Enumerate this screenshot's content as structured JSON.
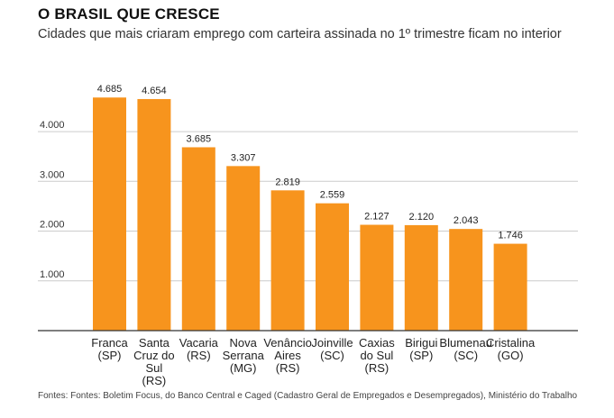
{
  "title": "O BRASIL QUE CRESCE",
  "subtitle": "Cidades que mais criaram emprego com carteira assinada no 1º trimestre ficam no interior",
  "source": "Fontes: Fontes: Boletim Focus, do Banco Central e Caged (Cadastro Geral de Empregados e Desempregados), Ministério do Trabalho",
  "colors": {
    "bar": "#f7941d",
    "grid": "#cccccc",
    "axis": "#333333"
  },
  "chart_data": {
    "type": "bar",
    "categories": [
      [
        "Franca",
        "(SP)"
      ],
      [
        "Santa",
        "Cruz do",
        "Sul",
        "(RS)"
      ],
      [
        "Vacaria",
        "(RS)"
      ],
      [
        "Nova",
        "Serrana",
        "(MG)"
      ],
      [
        "Venâncio",
        "Aires",
        "(RS)"
      ],
      [
        "Joinville",
        "(SC)"
      ],
      [
        "Caxias",
        "do Sul",
        "(RS)"
      ],
      [
        "Birigui",
        "(SP)"
      ],
      [
        "Blumenau",
        "(SC)"
      ],
      [
        "Cristalina",
        "(GO)"
      ]
    ],
    "values": [
      4685,
      4654,
      3685,
      3307,
      2819,
      2559,
      2127,
      2120,
      2043,
      1746
    ],
    "value_labels": [
      "4.685",
      "4.654",
      "3.685",
      "3.307",
      "2.819",
      "2.559",
      "2.127",
      "2.120",
      "2.043",
      "1.746"
    ],
    "yticks": [
      1000,
      2000,
      3000,
      4000
    ],
    "ytick_labels": [
      "1.000",
      "2.000",
      "3.000",
      "4.000"
    ],
    "ylim": [
      0,
      5000
    ],
    "grid": true,
    "xlabel": "",
    "ylabel": ""
  }
}
